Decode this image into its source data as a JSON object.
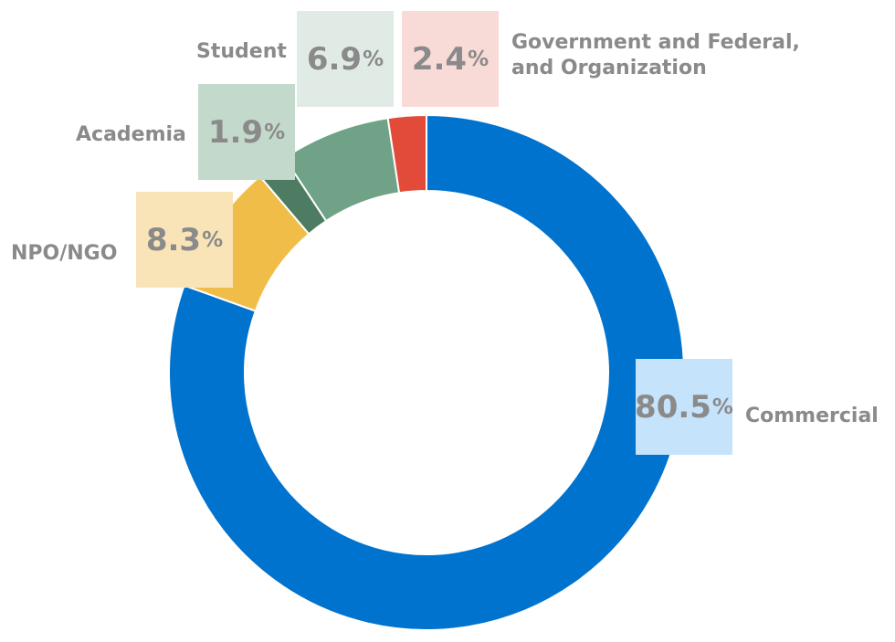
{
  "chart_data": {
    "type": "pie",
    "title": "",
    "categories": [
      "Commercial",
      "NPO/NGO",
      "Academia",
      "Student",
      "Government and Federal,\nand Organization"
    ],
    "values": [
      80.5,
      8.3,
      1.9,
      6.9,
      2.4
    ],
    "unit": "%",
    "colors": [
      "#0073CF",
      "#F0BE48",
      "#4E7C62",
      "#6FA286",
      "#E24B39"
    ],
    "label_box_colors": [
      "#C5E3FB",
      "#F9E4B7",
      "#C3D9CB",
      "#E1EBE5",
      "#F8DAD7"
    ],
    "legend": "labels beside slices",
    "donut": true
  }
}
